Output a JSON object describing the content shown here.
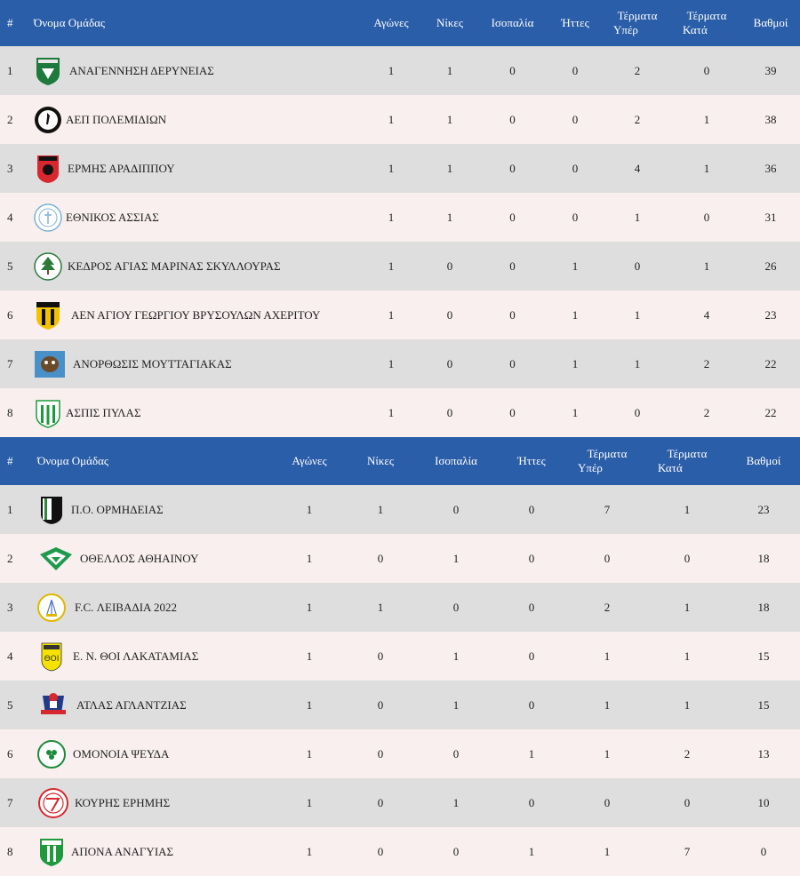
{
  "tables": [
    {
      "headers": {
        "rank": "#",
        "team": "Όνομα Ομάδας",
        "played": "Αγώνες",
        "wins": "Νίκες",
        "draws": "Ισοπαλία",
        "losses": "Ήττες",
        "goals_for_1": "Τέρματα",
        "goals_for_2": "Υπέρ",
        "goals_against_1": "Τέρματα",
        "goals_against_2": "Κατά",
        "points": "Βαθμοί"
      },
      "rows": [
        {
          "rank": "1",
          "team": "ΑΝΑΓΕΝΝΗΣΗ ΔΕΡΥΝΕΙΑΣ",
          "logo": "shield-green-logo",
          "played": "1",
          "wins": "1",
          "draws": "0",
          "losses": "0",
          "gf": "2",
          "ga": "0",
          "pts": "39"
        },
        {
          "rank": "2",
          "team": "ΑΕΠ ΠΟΛΕΜΙΔΙΩΝ",
          "logo": "round-black-logo",
          "played": "1",
          "wins": "1",
          "draws": "0",
          "losses": "0",
          "gf": "2",
          "ga": "1",
          "pts": "38"
        },
        {
          "rank": "3",
          "team": "ΕΡΜΗΣ ΑΡΑΔΙΠΠΟΥ",
          "logo": "shield-red-logo",
          "played": "1",
          "wins": "1",
          "draws": "0",
          "losses": "0",
          "gf": "4",
          "ga": "1",
          "pts": "36"
        },
        {
          "rank": "4",
          "team": "ΕΘΝΙΚΟΣ ΑΣΣΙΑΣ",
          "logo": "round-blue-logo",
          "played": "1",
          "wins": "1",
          "draws": "0",
          "losses": "0",
          "gf": "1",
          "ga": "0",
          "pts": "31"
        },
        {
          "rank": "5",
          "team": "ΚΕΔΡΟΣ ΑΓΙΑΣ ΜΑΡΙΝΑΣ ΣΚΥΛΛΟΥΡΑΣ",
          "logo": "round-tree-logo",
          "played": "1",
          "wins": "0",
          "draws": "0",
          "losses": "1",
          "gf": "0",
          "ga": "1",
          "pts": "26"
        },
        {
          "rank": "6",
          "team": "ΑΕΝ ΑΓΙΟΥ ΓΕΩΡΓΙΟΥ ΒΡΥΣΟΥΛΩΝ ΑΧΕΡΙΤΟΥ",
          "logo": "shield-yellow-black-logo",
          "played": "1",
          "wins": "0",
          "draws": "0",
          "losses": "1",
          "gf": "1",
          "ga": "4",
          "pts": "23"
        },
        {
          "rank": "7",
          "team": "ΑΝΟΡΘΩΣΙΣ ΜΟΥΤΤΑΓΙΑΚΑΣ",
          "logo": "square-blue-logo",
          "played": "1",
          "wins": "0",
          "draws": "0",
          "losses": "1",
          "gf": "1",
          "ga": "2",
          "pts": "22"
        },
        {
          "rank": "8",
          "team": "ΑΣΠΙΣ ΠΥΛΑΣ",
          "logo": "shield-green-white-logo",
          "played": "1",
          "wins": "0",
          "draws": "0",
          "losses": "1",
          "gf": "0",
          "ga": "2",
          "pts": "22"
        }
      ]
    },
    {
      "headers": {
        "rank": "#",
        "team": "Όνομα Ομάδας",
        "played": "Αγώνες",
        "wins": "Νίκες",
        "draws": "Ισοπαλία",
        "losses": "Ήττες",
        "goals_for_1": "Τέρματα",
        "goals_for_2": "Υπέρ",
        "goals_against_1": "Τέρματα",
        "goals_against_2": "Κατά",
        "points": "Βαθμοί"
      },
      "rows": [
        {
          "rank": "1",
          "team": "Π.Ο. ΟΡΜΗΔΕΙΑΣ",
          "logo": "shield-green-black-logo",
          "played": "1",
          "wins": "1",
          "draws": "0",
          "losses": "0",
          "gf": "7",
          "ga": "1",
          "pts": "23"
        },
        {
          "rank": "2",
          "team": "ΟΘΕΛΛΟΣ ΑΘΗΑΙΝΟΥ",
          "logo": "diamond-green-logo",
          "played": "1",
          "wins": "0",
          "draws": "1",
          "losses": "0",
          "gf": "0",
          "ga": "0",
          "pts": "18"
        },
        {
          "rank": "3",
          "team": "F.C. ΛΕΙΒΑΔΙΑ 2022",
          "logo": "round-yellow-logo",
          "played": "1",
          "wins": "1",
          "draws": "0",
          "losses": "0",
          "gf": "2",
          "ga": "1",
          "pts": "18"
        },
        {
          "rank": "4",
          "team": "Ε. Ν. ΘΟΙ ΛΑΚΑΤΑΜΙΑΣ",
          "logo": "shield-yellow-logo",
          "played": "1",
          "wins": "0",
          "draws": "1",
          "losses": "0",
          "gf": "1",
          "ga": "1",
          "pts": "15"
        },
        {
          "rank": "5",
          "team": "ΑΤΛΑΣ ΑΓΛΑΝΤΖΙΑΣ",
          "logo": "crest-red-blue-logo",
          "played": "1",
          "wins": "0",
          "draws": "1",
          "losses": "0",
          "gf": "1",
          "ga": "1",
          "pts": "15"
        },
        {
          "rank": "6",
          "team": "ΟΜΟΝΟΙΑ ΨΕΥΔΑ",
          "logo": "round-clover-logo",
          "played": "1",
          "wins": "0",
          "draws": "0",
          "losses": "1",
          "gf": "1",
          "ga": "2",
          "pts": "13"
        },
        {
          "rank": "7",
          "team": "ΚΟΥΡΗΣ ΕΡΗΜΗΣ",
          "logo": "round-red-logo",
          "played": "1",
          "wins": "0",
          "draws": "1",
          "losses": "0",
          "gf": "0",
          "ga": "0",
          "pts": "10"
        },
        {
          "rank": "8",
          "team": "ΑΠΟΝΑ ΑΝΑΓΥΙΑΣ",
          "logo": "shield-green-stripes-logo",
          "played": "1",
          "wins": "0",
          "draws": "0",
          "losses": "1",
          "gf": "1",
          "ga": "7",
          "pts": "0"
        }
      ]
    }
  ],
  "colors": {
    "header_bg": "#2b5ea8",
    "row_odd": "#dedede",
    "row_even": "#f8efee"
  }
}
